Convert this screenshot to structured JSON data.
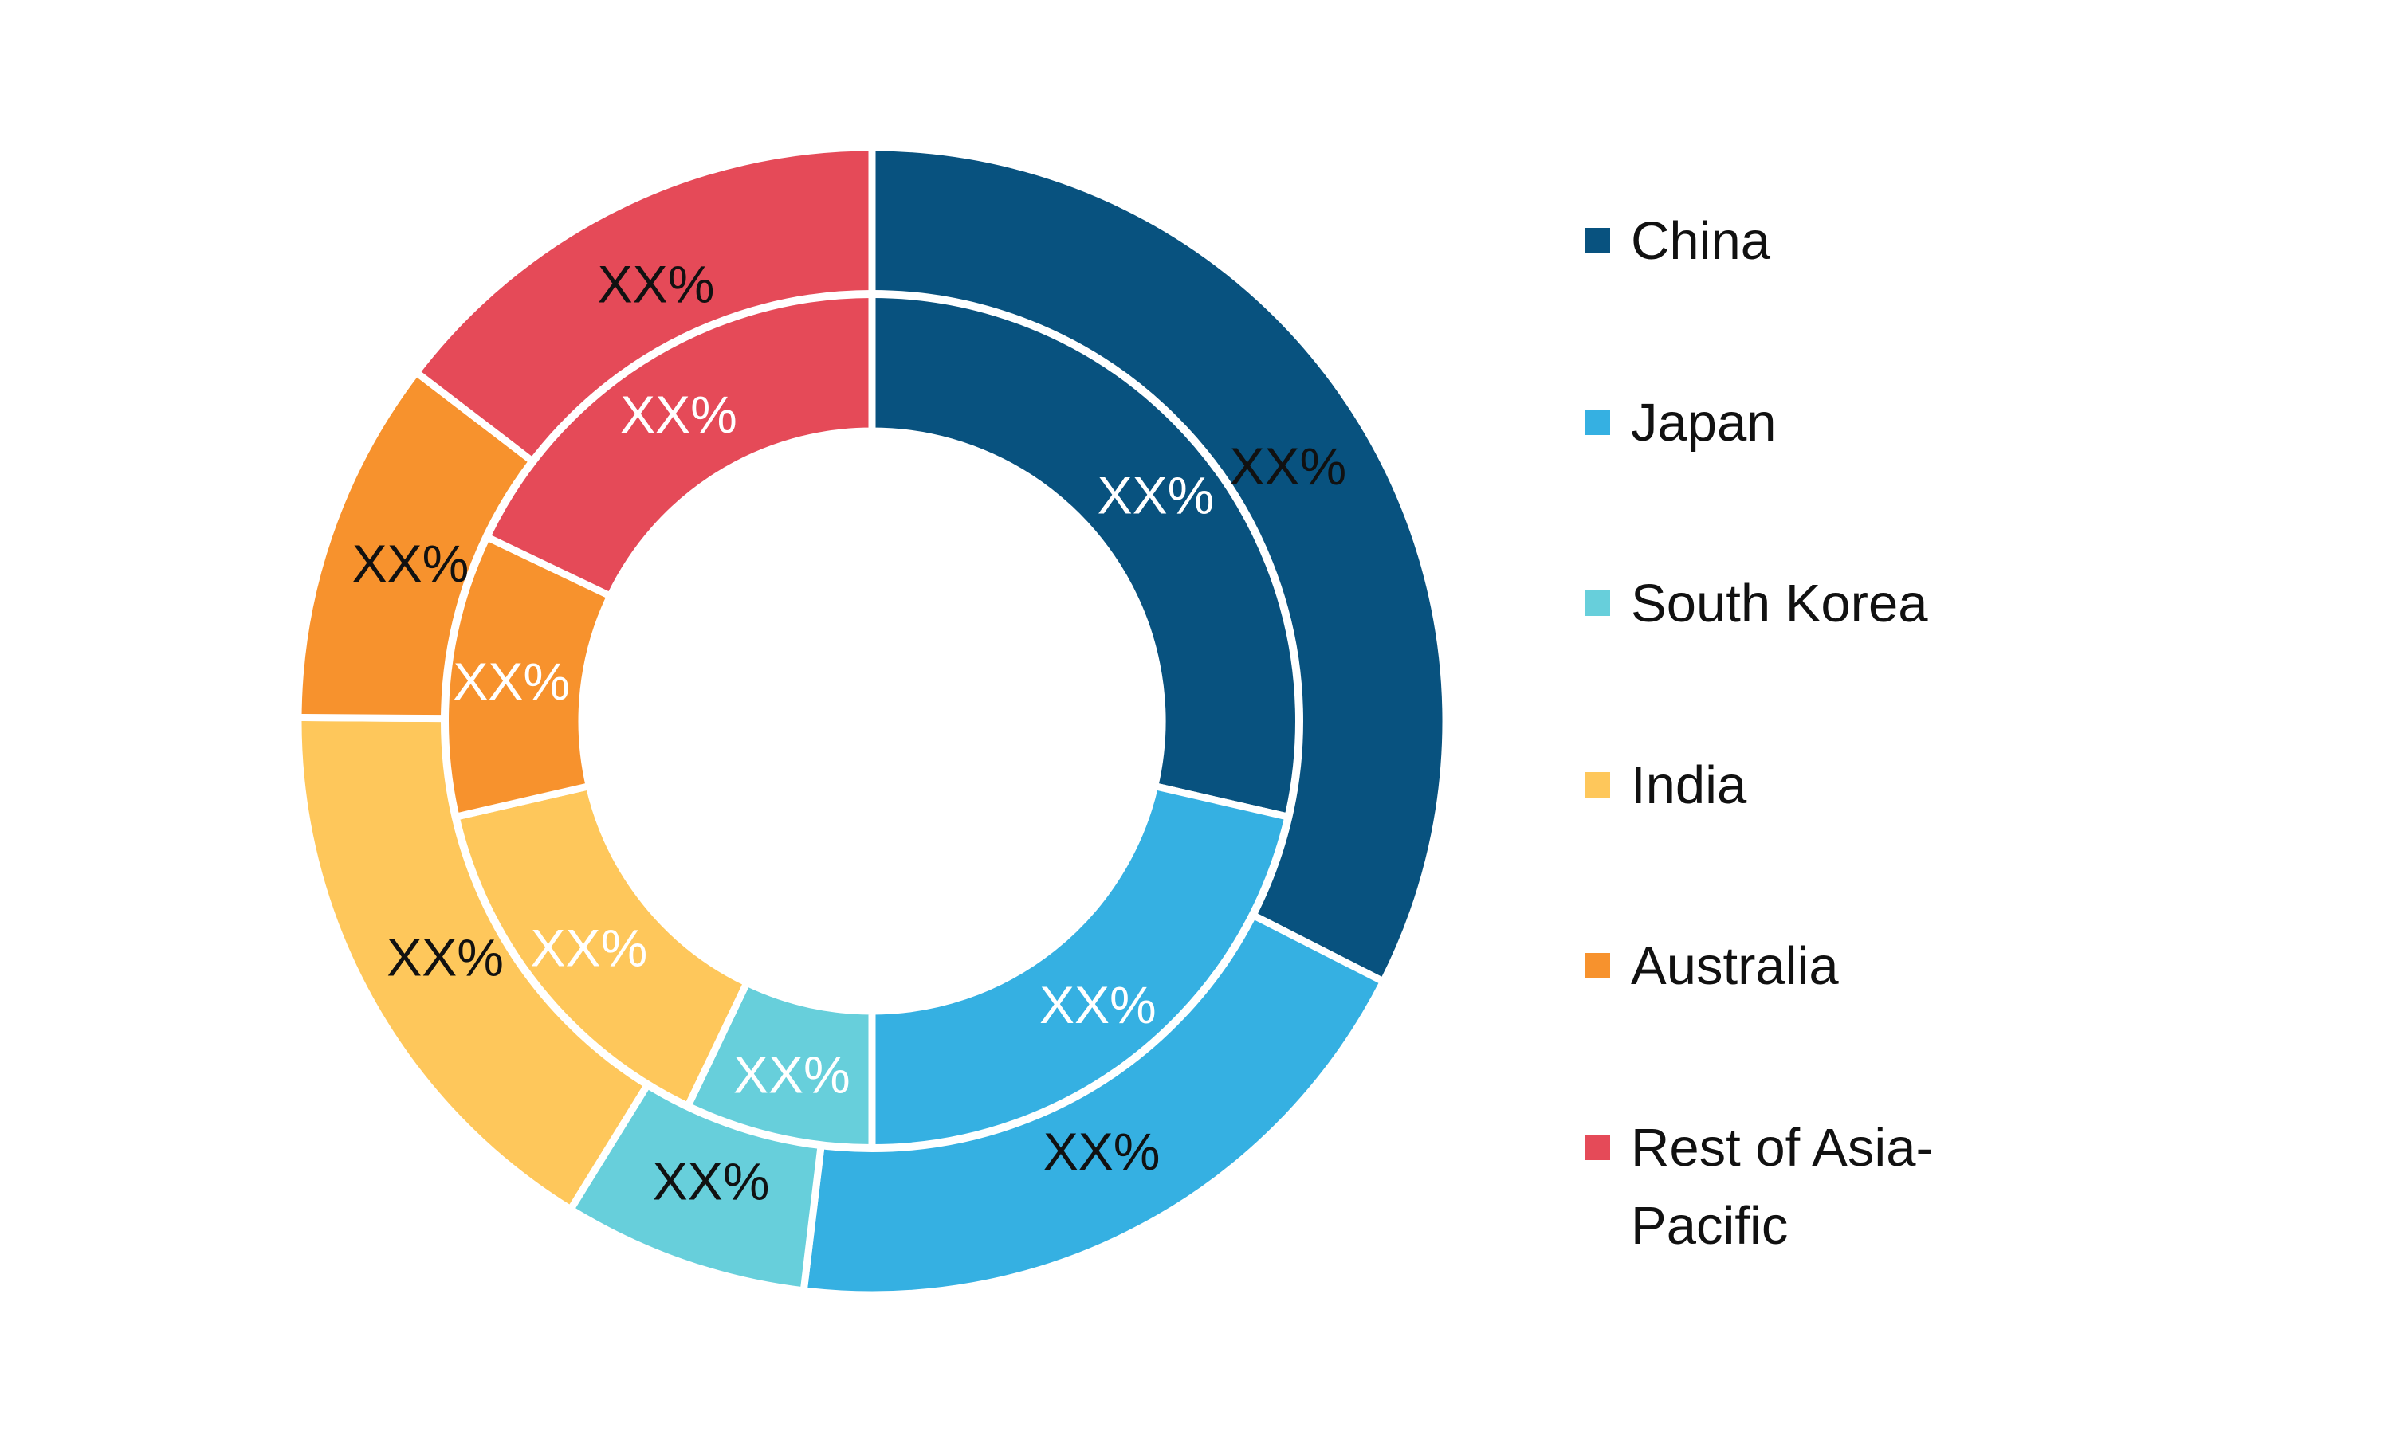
{
  "chart_data": {
    "type": "pie",
    "categories": [
      "China",
      "Japan",
      "South Korea",
      "India",
      "Australia",
      "Rest of Asia-Pacific"
    ],
    "series": [
      {
        "values": [
          32.5,
          19.4,
          6.9,
          16.3,
          10.3,
          14.6
        ],
        "labels": [
          "XX%",
          "XX%",
          "XX%",
          "XX%",
          "XX%",
          "XX%"
        ]
      },
      {
        "values": [
          28.6,
          21.4,
          7.1,
          14.3,
          10.7,
          17.9
        ],
        "labels": [
          "XX%",
          "XX%",
          "XX%",
          "XX%",
          "XX%",
          "XX%"
        ]
      }
    ],
    "colors": [
      "#08527f",
      "#35b0e2",
      "#67cfdb",
      "#fec75b",
      "#f7922d",
      "#e54a58"
    ],
    "legend": {
      "position": "right",
      "entries": [
        "China",
        "Japan",
        "South Korea",
        "India",
        "Australia",
        "Rest of Asia-\nPacific"
      ]
    },
    "outer_label_color": "#111111",
    "inner_label_color": "#ffffff",
    "separator_color": "#ffffff"
  }
}
